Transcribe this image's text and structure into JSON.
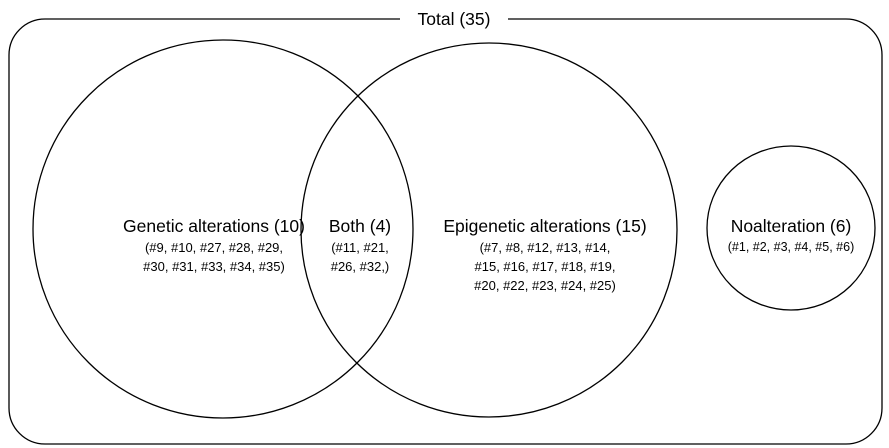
{
  "total_label": "Total (35)",
  "sets": {
    "genetic": {
      "label": "Genetic alterations (10)",
      "members": [
        "(#9, #10, #27, #28, #29,",
        "#30, #31, #33, #34, #35)"
      ]
    },
    "both": {
      "label": "Both (4)",
      "members": [
        "(#11, #21,",
        "#26, #32,)"
      ]
    },
    "epigenetic": {
      "label": "Epigenetic alterations (15)",
      "members": [
        "(#7, #8, #12, #13, #14,",
        "#15, #16, #17, #18, #19,",
        "#20, #22, #23, #24, #25)"
      ]
    },
    "none": {
      "label": "Noalteration (6)",
      "members": [
        "(#1, #2, #3, #4, #5, #6)"
      ]
    }
  }
}
